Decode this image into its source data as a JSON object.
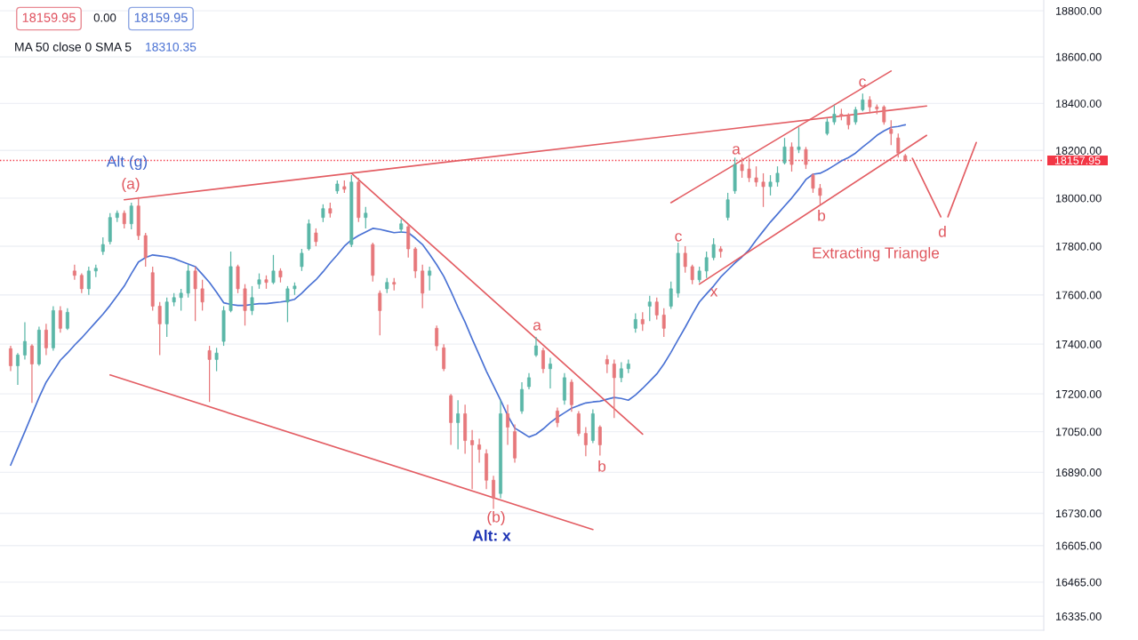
{
  "chart_data": {
    "type": "candlestick",
    "categories": [
      null,
      null,
      null,
      null,
      null,
      null,
      null,
      null,
      null,
      null,
      null,
      null,
      null,
      null,
      null,
      null,
      null,
      null,
      null,
      null,
      null,
      null,
      null,
      null,
      null,
      null,
      null,
      null,
      null,
      null,
      null,
      null,
      null,
      null,
      null,
      null,
      null,
      null,
      null,
      null,
      null,
      null,
      null,
      null,
      null,
      null,
      null,
      null,
      null,
      null,
      null,
      null,
      null,
      null,
      null,
      null,
      null,
      null,
      null,
      null,
      null,
      null,
      null,
      null,
      null,
      null,
      null,
      null,
      null,
      null,
      null,
      null,
      null,
      null,
      null,
      null,
      null,
      null,
      null,
      null,
      null,
      null,
      null,
      null,
      null,
      null,
      null,
      null,
      null,
      null,
      null,
      null,
      null,
      null,
      null,
      null,
      null,
      null,
      null,
      null,
      null,
      null,
      null,
      null,
      null,
      null,
      null,
      null,
      null,
      null,
      null,
      null,
      null,
      null,
      null,
      null,
      null,
      null,
      null,
      null,
      null,
      null,
      null,
      null,
      null,
      null,
      null,
      null,
      null,
      null,
      null,
      null,
      null,
      null,
      null,
      null,
      null,
      null,
      null,
      null,
      null,
      null,
      null,
      null,
      null,
      null,
      null
    ],
    "ohlc": [
      null,
      [
        17382,
        17393,
        17291,
        17313
      ],
      [
        17313,
        17364,
        17236,
        17356
      ],
      [
        17356,
        17489,
        17338,
        17411
      ],
      [
        17393,
        17400,
        17164,
        17320
      ],
      [
        17320,
        17471,
        17313,
        17457
      ],
      [
        17457,
        17482,
        17356,
        17385
      ],
      [
        17385,
        17554,
        17374,
        17536
      ],
      [
        17536,
        17554,
        17446,
        17464
      ],
      [
        17464,
        17546,
        17457,
        17529
      ],
      [
        17698,
        17724,
        17662,
        17680
      ],
      [
        17680,
        17688,
        17607,
        17625
      ],
      [
        17625,
        17716,
        17600,
        17698
      ],
      [
        17698,
        17724,
        17673,
        17709
      ],
      [
        17778,
        17837,
        17764,
        17807
      ],
      [
        17819,
        17937,
        17807,
        17919
      ],
      [
        17919,
        17948,
        17900,
        17937
      ],
      [
        17937,
        17948,
        17874,
        17893
      ],
      [
        17893,
        17981,
        17870,
        17967
      ],
      [
        17967,
        18004,
        17826,
        17844
      ],
      [
        17844,
        17855,
        17716,
        17753
      ],
      [
        17691,
        17716,
        17536,
        17554
      ],
      [
        17554,
        17571,
        17356,
        17482
      ],
      [
        17482,
        17589,
        17429,
        17571
      ],
      [
        17571,
        17607,
        17554,
        17589
      ],
      [
        17589,
        17625,
        17536,
        17607
      ],
      [
        17607,
        17724,
        17589,
        17698
      ],
      [
        17698,
        17716,
        17493,
        17625
      ],
      [
        17625,
        17662,
        17536,
        17571
      ],
      [
        17374,
        17393,
        17168,
        17338
      ],
      [
        17338,
        17385,
        17291,
        17364
      ],
      [
        17411,
        17554,
        17393,
        17536
      ],
      [
        17536,
        17778,
        17529,
        17716
      ],
      [
        17716,
        17724,
        17607,
        17625
      ],
      [
        17625,
        17644,
        17475,
        17536
      ],
      [
        17536,
        17636,
        17518,
        17589
      ],
      [
        17644,
        17688,
        17625,
        17662
      ],
      [
        17662,
        17680,
        17625,
        17651
      ],
      [
        17651,
        17764,
        17644,
        17698
      ],
      [
        17698,
        17709,
        17651,
        17673
      ],
      [
        17571,
        17636,
        17489,
        17625
      ],
      [
        17625,
        17651,
        17600,
        17636
      ],
      [
        17716,
        17789,
        17698,
        17771
      ],
      [
        17789,
        17911,
        17782,
        17893
      ],
      [
        17855,
        17874,
        17800,
        17819
      ],
      [
        17919,
        17974,
        17900,
        17956
      ],
      [
        17956,
        17981,
        17919,
        17937
      ],
      [
        18030,
        18074,
        18018,
        18059
      ],
      [
        18048,
        18074,
        18022,
        18037
      ],
      [
        17807,
        18096,
        17796,
        18067
      ],
      [
        18067,
        18085,
        17900,
        17919
      ],
      [
        17919,
        17963,
        17874,
        17937
      ],
      [
        17807,
        17815,
        17655,
        17680
      ],
      [
        17607,
        17618,
        17436,
        17536
      ],
      [
        17625,
        17669,
        17607,
        17651
      ],
      [
        17651,
        17669,
        17618,
        17644
      ],
      [
        17870,
        17911,
        17855,
        17893
      ],
      [
        17881,
        17893,
        17753,
        17789
      ],
      [
        17789,
        17796,
        17669,
        17698
      ],
      [
        17698,
        17724,
        17546,
        17607
      ],
      [
        17680,
        17716,
        17618,
        17698
      ],
      [
        17464,
        17475,
        17374,
        17393
      ],
      [
        17385,
        17400,
        17291,
        17301
      ],
      [
        17193,
        17200,
        16998,
        17086
      ],
      [
        17086,
        17175,
        16980,
        17121
      ],
      [
        17121,
        17157,
        16963,
        17015
      ],
      [
        17015,
        17057,
        16824,
        16998
      ],
      [
        16998,
        17022,
        16928,
        16980
      ],
      [
        16963,
        16980,
        16824,
        16859
      ],
      [
        16859,
        16876,
        16747,
        16789
      ],
      [
        16807,
        17175,
        16789,
        17121
      ],
      [
        17121,
        17157,
        16998,
        17068
      ],
      [
        17050,
        17079,
        16928,
        16946
      ],
      [
        17132,
        17247,
        17121,
        17218
      ],
      [
        17229,
        17283,
        17218,
        17265
      ],
      [
        17356,
        17429,
        17349,
        17393
      ],
      [
        17374,
        17385,
        17283,
        17301
      ],
      [
        17301,
        17345,
        17222,
        17320
      ],
      [
        17132,
        17146,
        17068,
        17086
      ],
      [
        17175,
        17283,
        17157,
        17265
      ],
      [
        17247,
        17258,
        17129,
        17157
      ],
      [
        17121,
        17132,
        17033,
        17043
      ],
      [
        17043,
        17068,
        16953,
        16998
      ],
      [
        17015,
        17139,
        17005,
        17121
      ],
      [
        17068,
        17075,
        16956,
        16998
      ],
      [
        17338,
        17356,
        17283,
        17320
      ],
      [
        17320,
        17338,
        17104,
        17265
      ],
      [
        17265,
        17327,
        17247,
        17301
      ],
      [
        17301,
        17338,
        17283,
        17320
      ],
      [
        17464,
        17525,
        17446,
        17500
      ],
      [
        17500,
        17529,
        17454,
        17482
      ],
      [
        17554,
        17596,
        17493,
        17571
      ],
      [
        17571,
        17589,
        17500,
        17518
      ],
      [
        17518,
        17546,
        17429,
        17464
      ],
      [
        17554,
        17655,
        17543,
        17625
      ],
      [
        17607,
        17815,
        17589,
        17771
      ],
      [
        17771,
        17800,
        17691,
        17716
      ],
      [
        17716,
        17724,
        17644,
        17662
      ],
      [
        17662,
        17716,
        17651,
        17698
      ],
      [
        17698,
        17778,
        17669,
        17753
      ],
      [
        17753,
        17833,
        17742,
        17807
      ],
      [
        17789,
        17800,
        17753,
        17778
      ],
      [
        17919,
        18022,
        17907,
        17993
      ],
      [
        18030,
        18170,
        18018,
        18141
      ],
      [
        18141,
        18170,
        18085,
        18115
      ],
      [
        18122,
        18170,
        18067,
        18085
      ],
      [
        18085,
        18133,
        18048,
        18067
      ],
      [
        18067,
        18104,
        17963,
        18048
      ],
      [
        18048,
        18096,
        18011,
        18067
      ],
      [
        18067,
        18133,
        18048,
        18104
      ],
      [
        18148,
        18253,
        18141,
        18215
      ],
      [
        18215,
        18234,
        18111,
        18141
      ],
      [
        18204,
        18298,
        18189,
        18215
      ],
      [
        18204,
        18215,
        18122,
        18141
      ],
      [
        18096,
        18104,
        18022,
        18041
      ],
      [
        18041,
        18059,
        17974,
        18011
      ],
      [
        18272,
        18336,
        18264,
        18321
      ],
      [
        18321,
        18392,
        18309,
        18354
      ],
      [
        18354,
        18377,
        18328,
        18347
      ],
      [
        18347,
        18358,
        18290,
        18309
      ],
      [
        18321,
        18385,
        18309,
        18373
      ],
      [
        18373,
        18442,
        18366,
        18415
      ],
      [
        18415,
        18431,
        18358,
        18385
      ],
      [
        18385,
        18396,
        18354,
        18377
      ],
      [
        18385,
        18392,
        18309,
        18321
      ],
      [
        18290,
        18328,
        18223,
        18272
      ],
      [
        18253,
        18272,
        18170,
        18189
      ],
      [
        18178,
        18185,
        18152,
        18158
      ],
      null,
      null,
      null,
      null,
      null,
      null,
      null,
      null,
      null,
      null,
      null,
      null,
      null,
      null,
      null,
      null,
      null,
      null,
      null
    ],
    "colors": [
      null,
      "#e7787b",
      "#5bb7a8",
      "#5bb7a8",
      "#e7787b",
      "#5bb7a8",
      "#e7787b",
      "#5bb7a8",
      "#e7787b",
      "#5bb7a8",
      "#e7787b",
      "#e7787b",
      "#5bb7a8",
      "#5bb7a8",
      "#5bb7a8",
      "#5bb7a8",
      "#5bb7a8",
      "#e7787b",
      "#5bb7a8",
      "#e7787b",
      "#e7787b",
      "#e7787b",
      "#e7787b",
      "#5bb7a8",
      "#5bb7a8",
      "#5bb7a8",
      "#5bb7a8",
      "#e7787b",
      "#e7787b",
      "#e7787b",
      "#5bb7a8",
      "#5bb7a8",
      "#5bb7a8",
      "#e7787b",
      "#e7787b",
      "#5bb7a8",
      "#5bb7a8",
      "#e7787b",
      "#5bb7a8",
      "#e7787b",
      "#5bb7a8",
      "#5bb7a8",
      "#5bb7a8",
      "#5bb7a8",
      "#e7787b",
      "#5bb7a8",
      "#e7787b",
      "#5bb7a8",
      "#e7787b",
      "#5bb7a8",
      "#e7787b",
      "#5bb7a8",
      "#e7787b",
      "#e7787b",
      "#5bb7a8",
      "#e7787b",
      "#5bb7a8",
      "#e7787b",
      "#e7787b",
      "#e7787b",
      "#5bb7a8",
      "#e7787b",
      "#e7787b",
      "#e7787b",
      "#5bb7a8",
      "#e7787b",
      "#e7787b",
      "#e7787b",
      "#e7787b",
      "#e7787b",
      "#5bb7a8",
      "#e7787b",
      "#e7787b",
      "#5bb7a8",
      "#5bb7a8",
      "#5bb7a8",
      "#e7787b",
      "#5bb7a8",
      "#e7787b",
      "#5bb7a8",
      "#e7787b",
      "#e7787b",
      "#e7787b",
      "#5bb7a8",
      "#e7787b",
      "#e7787b",
      "#e7787b",
      "#5bb7a8",
      "#5bb7a8",
      "#5bb7a8",
      "#e7787b",
      "#5bb7a8",
      "#e7787b",
      "#e7787b",
      "#5bb7a8",
      "#5bb7a8",
      "#e7787b",
      "#e7787b",
      "#5bb7a8",
      "#5bb7a8",
      "#5bb7a8",
      "#e7787b",
      "#5bb7a8",
      "#5bb7a8",
      "#e7787b",
      "#e7787b",
      "#e7787b",
      "#e7787b",
      "#5bb7a8",
      "#5bb7a8",
      "#5bb7a8",
      "#e7787b",
      "#5bb7a8",
      "#e7787b",
      "#e7787b",
      "#e7787b",
      "#5bb7a8",
      "#5bb7a8",
      "#e7787b",
      "#e7787b",
      "#5bb7a8",
      "#5bb7a8",
      "#e7787b",
      "#e7787b",
      "#e7787b",
      "#e7787b",
      "#e7787b",
      "#e7787b",
      null,
      null,
      null,
      null,
      null,
      null,
      null,
      null,
      null,
      null,
      null,
      null,
      null,
      null,
      null,
      null,
      null,
      null,
      null
    ],
    "series": [
      {
        "type": "line",
        "color": "#4a72d4",
        "values": [
          null,
          16918,
          16984,
          17050,
          17118,
          17186,
          17247,
          17291,
          17335,
          17364,
          17396,
          17425,
          17457,
          17489,
          17521,
          17557,
          17596,
          17636,
          17687,
          17735,
          17753,
          17764,
          17760,
          17756,
          17749,
          17738,
          17727,
          17716,
          17684,
          17651,
          17611,
          17568,
          17561,
          17557,
          17557,
          17561,
          17564,
          17564,
          17568,
          17571,
          17575,
          17582,
          17607,
          17636,
          17662,
          17695,
          17731,
          17764,
          17800,
          17826,
          17844,
          17859,
          17874,
          17870,
          17863,
          17856,
          17859,
          17856,
          17833,
          17807,
          17767,
          17724,
          17676,
          17615,
          17550,
          17489,
          17421,
          17356,
          17291,
          17233,
          17175,
          17114,
          17064,
          17047,
          17029,
          17040,
          17061,
          17086,
          17107,
          17125,
          17143,
          17154,
          17164,
          17168,
          17171,
          17179,
          17186,
          17182,
          17175,
          17196,
          17222,
          17251,
          17280,
          17320,
          17367,
          17418,
          17468,
          17521,
          17571,
          17604,
          17636,
          17673,
          17702,
          17731,
          17756,
          17785,
          17826,
          17863,
          17900,
          17933,
          17967,
          18000,
          18037,
          18078,
          18100,
          18104,
          18119,
          18137,
          18156,
          18170,
          18189,
          18215,
          18238,
          18264,
          18283,
          18298,
          18302,
          18309,
          null,
          null,
          null,
          null,
          null,
          null,
          null,
          null,
          null,
          null,
          null,
          null,
          null,
          null,
          null,
          null,
          null,
          null,
          null
        ]
      },
      {
        "type": "line",
        "color": "#e35d63",
        "values": [
          null,
          null,
          null,
          null,
          null,
          null,
          null,
          null,
          null,
          null,
          null,
          null,
          null,
          null,
          null,
          null,
          null,
          17993,
          null,
          null,
          null,
          null,
          null,
          null,
          null,
          null,
          null,
          null,
          null,
          null,
          null,
          null,
          null,
          null,
          null,
          null,
          null,
          null,
          null,
          null,
          null,
          null,
          null,
          null,
          null,
          null,
          null,
          null,
          null,
          null,
          null,
          null,
          null,
          null,
          null,
          null,
          null,
          null,
          null,
          null,
          null,
          null,
          null,
          null,
          null,
          null,
          null,
          null,
          null,
          null,
          null,
          null,
          null,
          null,
          null,
          null,
          null,
          null,
          null,
          null,
          null,
          null,
          null,
          null,
          null,
          null,
          null,
          null,
          null,
          null,
          null,
          null,
          null,
          null,
          null,
          null,
          null,
          null,
          null,
          null,
          null,
          null,
          null,
          null,
          null,
          null,
          null,
          null,
          null,
          null,
          null,
          null,
          null,
          null,
          null,
          null,
          null,
          null,
          null,
          null,
          null,
          null,
          null,
          null,
          null,
          null,
          null,
          null,
          null,
          null,
          18389,
          null,
          null,
          null,
          null,
          null,
          null,
          null,
          null,
          null,
          null,
          null,
          null,
          null,
          null,
          null,
          null
        ]
      },
      {
        "type": "line",
        "color": "#e35d63",
        "values": [
          null,
          null,
          null,
          null,
          null,
          null,
          null,
          null,
          null,
          null,
          null,
          null,
          null,
          null,
          null,
          null,
          null,
          null,
          null,
          null,
          null,
          null,
          null,
          null,
          null,
          null,
          null,
          null,
          null,
          null,
          null,
          null,
          null,
          null,
          null,
          null,
          null,
          null,
          null,
          null,
          null,
          null,
          null,
          null,
          null,
          null,
          null,
          null,
          null,
          18104,
          null,
          null,
          null,
          null,
          null,
          null,
          null,
          null,
          null,
          null,
          null,
          null,
          null,
          null,
          null,
          null,
          null,
          null,
          null,
          null,
          null,
          null,
          null,
          null,
          null,
          null,
          null,
          null,
          null,
          null,
          null,
          null,
          null,
          null,
          null,
          null,
          null,
          null,
          null,
          null,
          17040,
          null,
          null,
          null,
          null,
          null,
          null,
          null,
          null,
          null,
          null,
          null,
          null,
          null,
          null,
          null,
          null,
          null,
          null,
          null,
          null,
          null,
          null,
          null,
          null,
          null,
          null,
          null,
          null,
          null,
          null,
          null,
          null,
          null,
          null,
          null,
          null,
          null,
          null,
          null,
          null,
          null,
          null,
          null,
          null,
          null,
          null,
          null,
          null,
          null,
          null,
          null,
          null,
          null,
          null,
          null,
          null
        ]
      },
      {
        "type": "line",
        "color": "#e35d63",
        "values": [
          null,
          null,
          null,
          null,
          null,
          null,
          null,
          null,
          null,
          null,
          null,
          null,
          null,
          null,
          null,
          17276,
          null,
          null,
          null,
          null,
          null,
          null,
          null,
          null,
          null,
          null,
          null,
          null,
          null,
          null,
          null,
          null,
          null,
          null,
          null,
          null,
          null,
          null,
          null,
          null,
          null,
          null,
          null,
          null,
          null,
          null,
          null,
          null,
          null,
          null,
          null,
          null,
          null,
          null,
          null,
          null,
          null,
          null,
          null,
          null,
          null,
          null,
          null,
          null,
          null,
          null,
          null,
          null,
          null,
          null,
          null,
          null,
          null,
          null,
          null,
          null,
          null,
          null,
          null,
          null,
          null,
          null,
          null,
          16667,
          null,
          null,
          null,
          null,
          null,
          null,
          null,
          null,
          null,
          null,
          null,
          null,
          null,
          null,
          null,
          null,
          null,
          null,
          null,
          null,
          null,
          null,
          null,
          null,
          null,
          null,
          null,
          null,
          null,
          null,
          null,
          null,
          null,
          null,
          null,
          null,
          null,
          null,
          null,
          null,
          null,
          null,
          null,
          null,
          null,
          null,
          null,
          null,
          null,
          null,
          null,
          null,
          null,
          null,
          null,
          null,
          null,
          null,
          null,
          null,
          null,
          null,
          null
        ]
      },
      {
        "type": "line",
        "color": "#e35d63",
        "values": [
          null,
          null,
          null,
          null,
          null,
          null,
          null,
          null,
          null,
          null,
          null,
          null,
          null,
          null,
          null,
          null,
          null,
          null,
          null,
          null,
          null,
          null,
          null,
          null,
          null,
          null,
          null,
          null,
          null,
          null,
          null,
          null,
          null,
          null,
          null,
          null,
          null,
          null,
          null,
          null,
          null,
          null,
          null,
          null,
          null,
          null,
          null,
          null,
          null,
          null,
          null,
          null,
          null,
          null,
          null,
          null,
          null,
          null,
          null,
          null,
          null,
          null,
          null,
          null,
          null,
          null,
          null,
          null,
          null,
          null,
          null,
          null,
          null,
          null,
          null,
          null,
          null,
          null,
          null,
          null,
          null,
          null,
          null,
          null,
          null,
          null,
          null,
          null,
          null,
          null,
          null,
          null,
          null,
          null,
          17981,
          null,
          null,
          null,
          null,
          null,
          null,
          null,
          null,
          null,
          null,
          null,
          null,
          null,
          null,
          null,
          null,
          null,
          null,
          null,
          null,
          null,
          null,
          null,
          null,
          null,
          null,
          null,
          null,
          null,
          null,
          18539,
          null,
          null,
          null,
          null,
          null,
          null,
          null,
          null,
          null,
          null,
          null,
          null,
          null,
          null,
          null,
          null,
          null,
          null,
          null,
          null,
          null
        ]
      },
      {
        "type": "line",
        "color": "#e35d63",
        "values": [
          null,
          null,
          null,
          null,
          null,
          null,
          null,
          null,
          null,
          null,
          null,
          null,
          null,
          null,
          null,
          null,
          null,
          null,
          null,
          null,
          null,
          null,
          null,
          null,
          null,
          null,
          null,
          null,
          null,
          null,
          null,
          null,
          null,
          null,
          null,
          null,
          null,
          null,
          null,
          null,
          null,
          null,
          null,
          null,
          null,
          null,
          null,
          null,
          null,
          null,
          null,
          null,
          null,
          null,
          null,
          null,
          null,
          null,
          null,
          null,
          null,
          null,
          null,
          null,
          null,
          null,
          null,
          null,
          null,
          null,
          null,
          null,
          null,
          null,
          null,
          null,
          null,
          null,
          null,
          null,
          null,
          null,
          null,
          null,
          null,
          null,
          null,
          null,
          null,
          null,
          null,
          null,
          null,
          null,
          null,
          null,
          null,
          null,
          17644,
          null,
          null,
          null,
          null,
          null,
          null,
          null,
          null,
          null,
          null,
          null,
          null,
          null,
          null,
          null,
          null,
          null,
          null,
          null,
          null,
          null,
          null,
          null,
          null,
          null,
          null,
          null,
          null,
          null,
          null,
          null,
          18264,
          null,
          null,
          null,
          null,
          null,
          null,
          null,
          null,
          null,
          null,
          null,
          null,
          null,
          null,
          null,
          null
        ]
      },
      {
        "type": "line",
        "color": "#e35d63",
        "values": [
          null,
          null,
          null,
          null,
          null,
          null,
          null,
          null,
          null,
          null,
          null,
          null,
          null,
          null,
          null,
          null,
          null,
          null,
          null,
          null,
          null,
          null,
          null,
          null,
          null,
          null,
          null,
          null,
          null,
          null,
          null,
          null,
          null,
          null,
          null,
          null,
          null,
          null,
          null,
          null,
          null,
          null,
          null,
          null,
          null,
          null,
          null,
          null,
          null,
          null,
          null,
          null,
          null,
          null,
          null,
          null,
          null,
          null,
          null,
          null,
          null,
          null,
          null,
          null,
          null,
          null,
          null,
          null,
          null,
          null,
          null,
          null,
          null,
          null,
          null,
          null,
          null,
          null,
          null,
          null,
          null,
          null,
          null,
          null,
          null,
          null,
          null,
          null,
          null,
          null,
          null,
          null,
          null,
          null,
          null,
          null,
          null,
          null,
          null,
          null,
          null,
          null,
          null,
          null,
          null,
          null,
          null,
          null,
          null,
          null,
          null,
          null,
          null,
          null,
          null,
          null,
          null,
          null,
          null,
          null,
          null,
          null,
          null,
          null,
          null,
          null,
          null,
          null,
          18167,
          null,
          null,
          null,
          17922,
          null,
          null,
          null,
          null,
          null,
          null,
          null,
          null,
          null,
          null,
          null,
          null,
          null,
          null
        ]
      },
      {
        "type": "line",
        "color": "#e35d63",
        "values": [
          null,
          null,
          null,
          null,
          null,
          null,
          null,
          null,
          null,
          null,
          null,
          null,
          null,
          null,
          null,
          null,
          null,
          null,
          null,
          null,
          null,
          null,
          null,
          null,
          null,
          null,
          null,
          null,
          null,
          null,
          null,
          null,
          null,
          null,
          null,
          null,
          null,
          null,
          null,
          null,
          null,
          null,
          null,
          null,
          null,
          null,
          null,
          null,
          null,
          null,
          null,
          null,
          null,
          null,
          null,
          null,
          null,
          null,
          null,
          null,
          null,
          null,
          null,
          null,
          null,
          null,
          null,
          null,
          null,
          null,
          null,
          null,
          null,
          null,
          null,
          null,
          null,
          null,
          null,
          null,
          null,
          null,
          null,
          null,
          null,
          null,
          null,
          null,
          null,
          null,
          null,
          null,
          null,
          null,
          null,
          null,
          null,
          null,
          null,
          null,
          null,
          null,
          null,
          null,
          null,
          null,
          null,
          null,
          null,
          null,
          null,
          null,
          null,
          null,
          null,
          null,
          null,
          null,
          null,
          null,
          null,
          null,
          null,
          null,
          null,
          null,
          null,
          null,
          null,
          null,
          null,
          null,
          null,
          17922,
          null,
          null,
          null,
          18234,
          null,
          null,
          null,
          null,
          null,
          null,
          null,
          null,
          null
        ]
      }
    ],
    "log": true,
    "ylim": [
      16282,
      18847
    ],
    "yticks": [
      {
        "value": 18800,
        "label": "18800.00"
      },
      {
        "value": 18600,
        "label": "18600.00"
      },
      {
        "value": 18400,
        "label": "18400.00"
      },
      {
        "value": 18200,
        "label": "18200.00"
      },
      {
        "value": 18000,
        "label": "18000.00"
      },
      {
        "value": 17800,
        "label": "17800.00"
      },
      {
        "value": 17600,
        "label": "17600.00"
      },
      {
        "value": 17400,
        "label": "17400.00"
      },
      {
        "value": 17200,
        "label": "17200.00"
      },
      {
        "value": 17050,
        "label": "17050.00"
      },
      {
        "value": 16890,
        "label": "16890.00"
      },
      {
        "value": 16730,
        "label": "16730.00"
      },
      {
        "value": 16605,
        "label": "16605.00"
      },
      {
        "value": 16465,
        "label": "16465.00"
      },
      {
        "value": 16335,
        "label": "16335.00"
      }
    ],
    "grid": "y",
    "tick_labels": "y",
    "ref_lines": [
      {
        "axis": "y",
        "value": 18157.95,
        "label": "18157.95",
        "color": "#f23645",
        "line_style": "dotted"
      }
    ],
    "annotations": [
      "18159.95",
      "0.00",
      "18159.95",
      "MA 50 close 0 SMA 5",
      "18310.35",
      "Alt (g)",
      "(a)",
      "(b)",
      "Alt: x",
      "a",
      "b",
      "c",
      "x",
      "a",
      "b",
      "c",
      "d",
      "Extracting Triangle"
    ]
  }
}
